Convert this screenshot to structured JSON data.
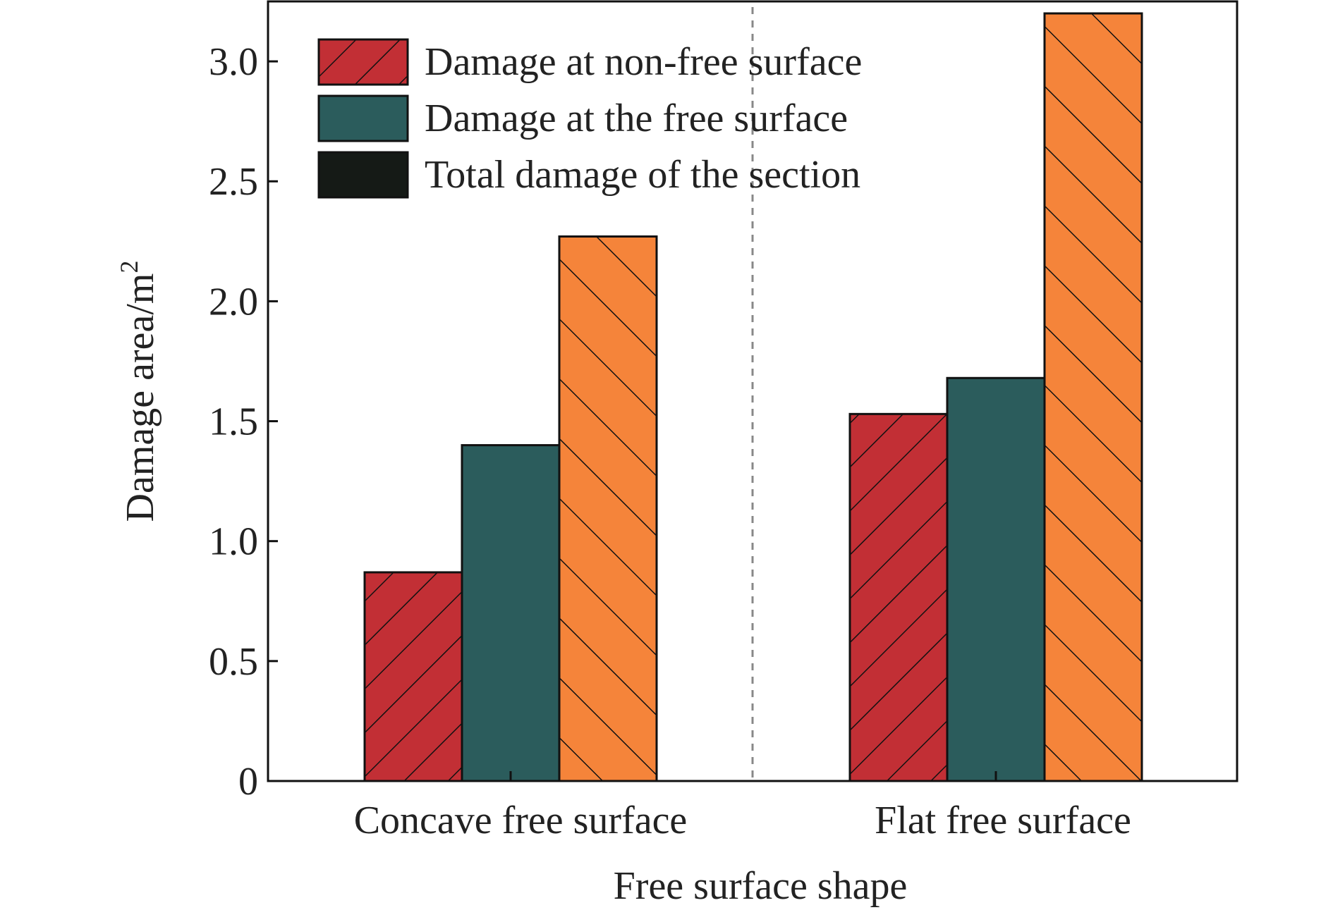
{
  "chart_data": {
    "type": "bar",
    "title": "",
    "xlabel": "Free surface shape",
    "ylabel": "Damage area/m",
    "ylabel_superscript": "2",
    "categories": [
      "Concave free surface",
      "Flat free surface"
    ],
    "series": [
      {
        "name": "Damage at non-free surface",
        "values": [
          0.87,
          1.53
        ],
        "color": "#c22f35",
        "hatch": "forward-diagonal"
      },
      {
        "name": "Damage at the free surface",
        "values": [
          1.4,
          1.68
        ],
        "color": "#2b5c5c",
        "hatch": "none"
      },
      {
        "name": "Total damage of the section",
        "values": [
          2.27,
          3.2
        ],
        "color": "#f5843a",
        "hatch": "back-diagonal",
        "legend_color": "#151a16"
      }
    ],
    "ylim": [
      0,
      3.25
    ],
    "yticks": [
      0,
      0.5,
      1.0,
      1.5,
      2.0,
      2.5,
      3.0
    ],
    "ytick_labels": [
      "0",
      "0.5",
      "1.0",
      "1.5",
      "2.0",
      "2.5",
      "3.0"
    ],
    "grid": false,
    "legend_position": "top-left",
    "separator": "dashed vertical line between categories"
  }
}
